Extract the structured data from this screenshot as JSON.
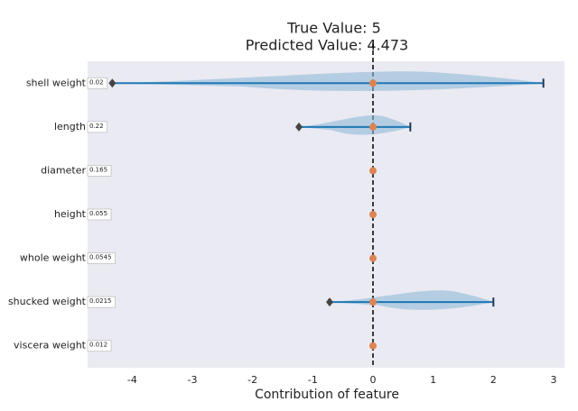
{
  "chart_data": {
    "type": "contribution",
    "title": "True Value: 5",
    "subtitle": "Predicted Value: 4.473",
    "x_label": "Contribution of feature",
    "categories": [
      "shell weight",
      "length",
      "diameter",
      "height",
      "whole weight",
      "shucked weight",
      "viscera weight"
    ],
    "feature_values": [
      0.02,
      0.22,
      0.165,
      0.055,
      0.0545,
      0.0215,
      0.012
    ],
    "values": [
      0,
      0,
      0,
      0,
      0,
      0,
      0
    ],
    "mins": [
      -4.33,
      -1.23,
      0,
      0,
      0,
      -0.72,
      0
    ],
    "maxs": [
      2.83,
      0.62,
      0,
      0,
      0,
      2.0,
      0
    ],
    "color": "#dd8452",
    "range_color": "#1f77b4",
    "violin_color": "#8fb9d8",
    "xlim": [
      -4.74,
      3.18
    ],
    "xticks": [
      -4,
      -3,
      -2,
      -1,
      0,
      1,
      2,
      3
    ]
  }
}
